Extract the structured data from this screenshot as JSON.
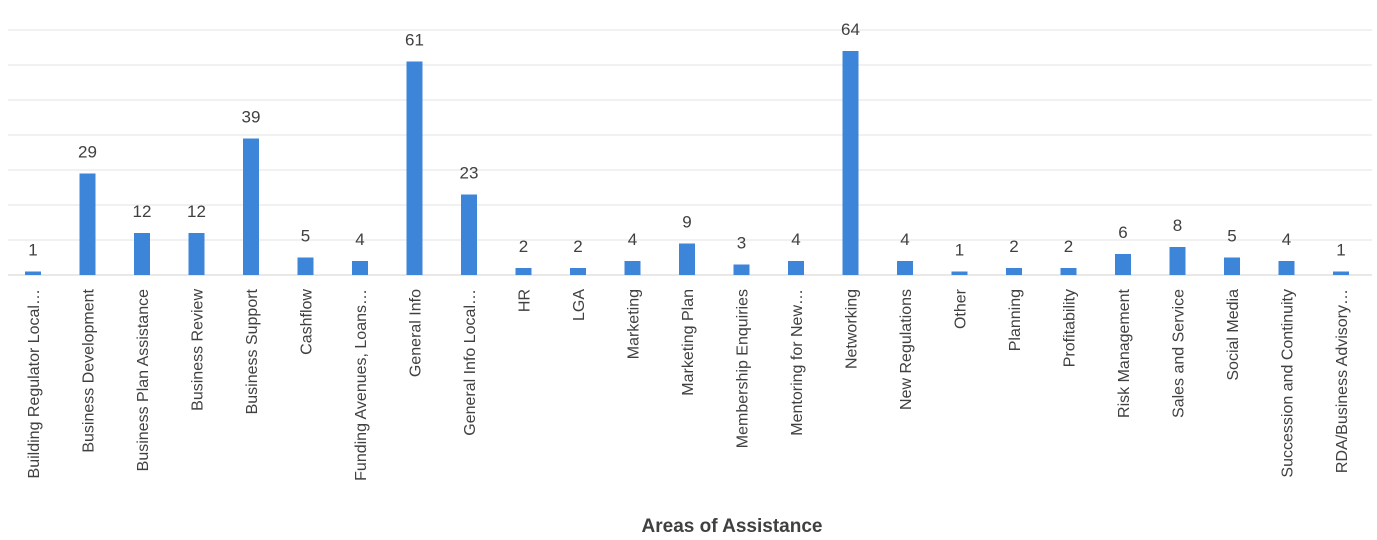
{
  "chart_data": {
    "type": "bar",
    "title": "",
    "xlabel": "Areas of Assistance",
    "ylabel": "",
    "ylim": [
      0,
      70
    ],
    "grid": true,
    "bar_color": "#3d85d8",
    "categories": [
      "Building Regulator Local…",
      "Business Development",
      "Business Plan Assistance",
      "Business Review",
      "Business Support",
      "Cashflow",
      "Funding Avenues, Loans…",
      "General Info",
      "General Info Local…",
      "HR",
      "LGA",
      "Marketing",
      "Marketing Plan",
      "Membership Enquiries",
      "Mentoring for New…",
      "Networking",
      "New Regulations",
      "Other",
      "Planning",
      "Profitability",
      "Risk Management",
      "Sales and Service",
      "Social Media",
      "Succession and Continuity",
      "RDA/Business Advisory…"
    ],
    "values": [
      1,
      29,
      12,
      12,
      39,
      5,
      4,
      61,
      23,
      2,
      2,
      4,
      9,
      3,
      4,
      64,
      4,
      1,
      2,
      2,
      6,
      8,
      5,
      4,
      1
    ]
  }
}
